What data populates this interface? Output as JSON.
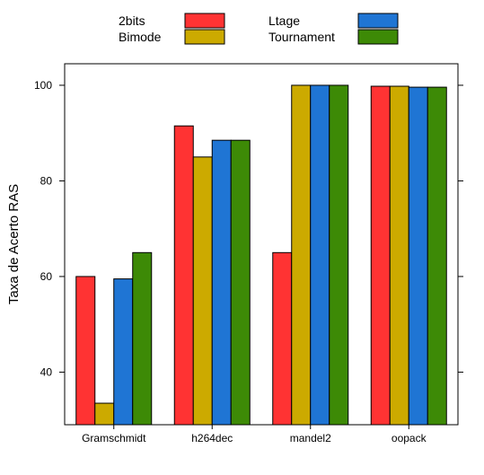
{
  "chart_data": {
    "type": "bar",
    "ylabel": "Taxa de Acerto RAS",
    "xlabel": "",
    "categories": [
      "Gramschmidt",
      "h264dec",
      "mandel2",
      "oopack"
    ],
    "ylim": [
      29,
      104.5
    ],
    "yticks": [
      40,
      60,
      80,
      100
    ],
    "grid": false,
    "legend_position": "top",
    "series": [
      {
        "name": "2bits",
        "color": "#ff3333",
        "values": [
          60,
          91.5,
          65,
          99.8
        ]
      },
      {
        "name": "Bimode",
        "color": "#ccaa00",
        "values": [
          33.5,
          85,
          100,
          99.8
        ]
      },
      {
        "name": "Ltage",
        "color": "#1f75d4",
        "values": [
          59.5,
          88.5,
          100,
          99.6
        ]
      },
      {
        "name": "Tournament",
        "color": "#3d8a06",
        "values": [
          65,
          88.5,
          100,
          99.6
        ]
      }
    ]
  }
}
